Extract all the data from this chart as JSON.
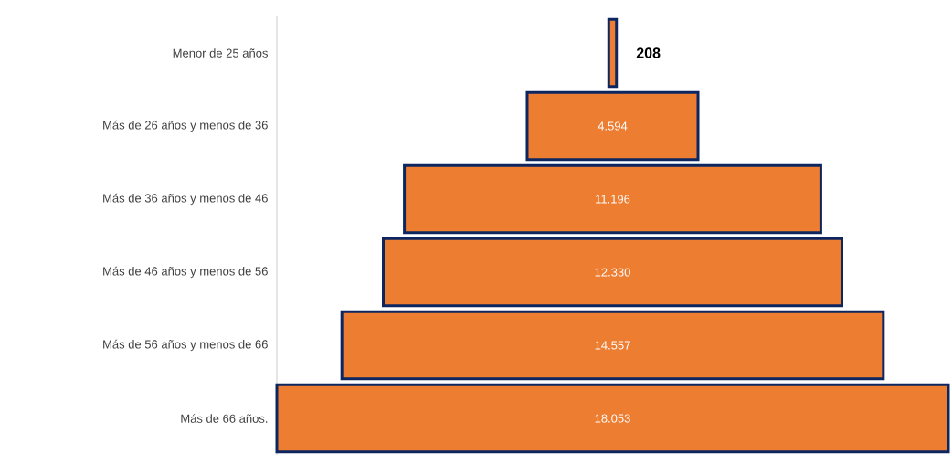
{
  "chart_data": {
    "type": "other",
    "categories": [
      "Menor de 25 años",
      "Más de 26 años y menos de 36",
      "Más de 36 años y menos de 46",
      "Más de 46 años y menos de 56",
      "Más de 56 años y menos de 66",
      "Más de 66 años."
    ],
    "values": [
      208,
      4594,
      11196,
      12330,
      14557,
      18053
    ],
    "value_labels": [
      "208",
      "4.594",
      "11.196",
      "12.330",
      "14.557",
      "18.053"
    ],
    "color": "#ed7d31"
  }
}
